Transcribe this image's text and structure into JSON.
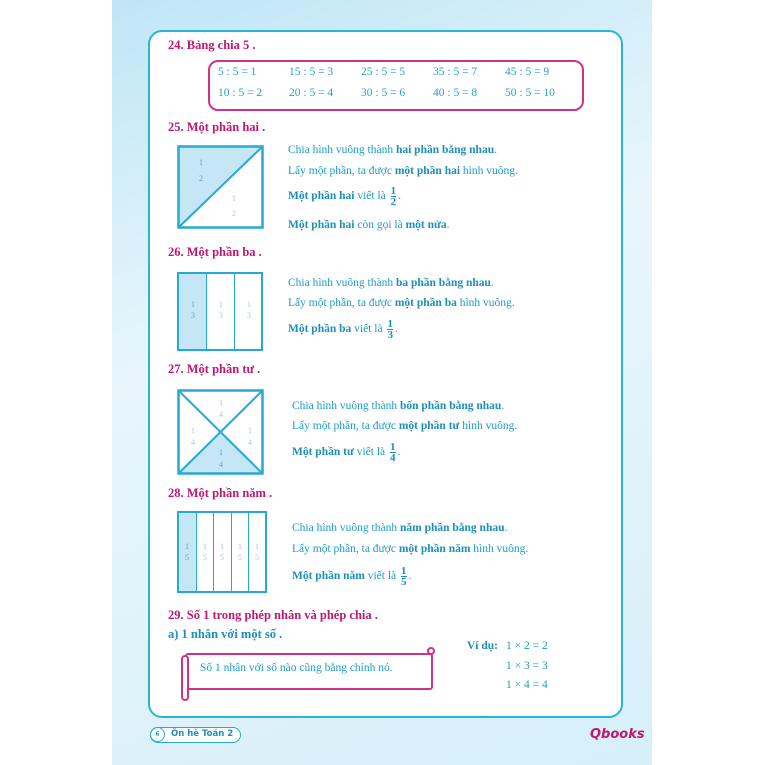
{
  "s24": {
    "title": "24. Bảng chia 5 .",
    "rows": [
      [
        "5 : 5 = 1",
        "15 : 5 = 3",
        "25 : 5 = 5",
        "35 : 5 = 7",
        "45 : 5 = 9"
      ],
      [
        "10 : 5 = 2",
        "20 : 5 = 4",
        "30 : 5 = 6",
        "40 : 5 = 8",
        "50 : 5 = 10"
      ]
    ]
  },
  "s25": {
    "title": "25. Một phần hai .",
    "l1a": "Chia hình vuông thành ",
    "l1b": "hai phần bằng nhau",
    "l1c": ".",
    "l2a": "Lấy một phần, ta được ",
    "l2b": "một phần hai",
    "l2c": " hình vuông.",
    "l3a": "Một phần hai",
    "l3b": " viết là ",
    "l4a": "Một phần hai",
    "l4b": " còn gọi là ",
    "l4c": "một nửa",
    "l4d": ".",
    "num": "1",
    "den": "2"
  },
  "s26": {
    "title": "26. Một phần ba .",
    "l1a": "Chia hình vuông thành ",
    "l1b": "ba phần bằng nhau",
    "l1c": ".",
    "l2a": "Lấy một phần, ta được ",
    "l2b": "một phần ba",
    "l2c": " hình vuông.",
    "l3a": "Một phần ba",
    "l3b": " viết là ",
    "num": "1",
    "den": "3"
  },
  "s27": {
    "title": "27. Một phần tư .",
    "l1a": "Chia hình vuông thành ",
    "l1b": "bốn phần bằng nhau",
    "l1c": ".",
    "l2a": "Lấy một phần, ta được ",
    "l2b": "một phần tư",
    "l2c": " hình vuông.",
    "l3a": "Một phần tư",
    "l3b": " viết là ",
    "num": "1",
    "den": "4"
  },
  "s28": {
    "title": "28. Một phần năm .",
    "l1a": "Chia hình vuông thành ",
    "l1b": "năm phần bằng nhau",
    "l1c": ".",
    "l2a": "Lấy một phần, ta được ",
    "l2b": "một phần năm",
    "l2c": " hình vuông.",
    "l3a": "Một phần năm",
    "l3b": " viết là ",
    "num": "1",
    "den": "5"
  },
  "s29": {
    "title": "29. Số 1 trong phép nhân và phép chia .",
    "sub": "a) 1 nhân với một số .",
    "rule": "Số 1 nhân với số nào cũng bằng chính nó.",
    "example_label": "Ví dụ:",
    "examples": [
      "1 × 2 = 2",
      "1 × 3 = 3",
      "1 × 4 = 4"
    ]
  },
  "footer": {
    "page": "6",
    "book": "Ôn hè Toán 2",
    "logo": "Qbooks"
  },
  "colors": {
    "heading": "#c0176f",
    "text": "#1b9cc4",
    "border": "#27b6d8",
    "fill": "#c5e6f4"
  }
}
